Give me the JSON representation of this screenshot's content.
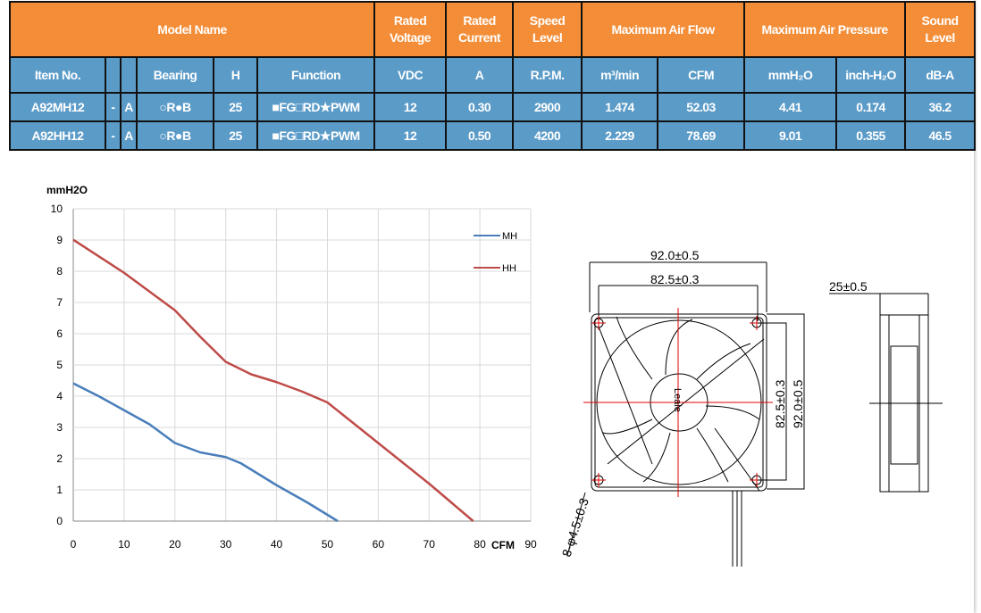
{
  "table": {
    "header1": {
      "model_name": "Model Name",
      "rated_voltage": "Rated Voltage",
      "rated_current": "Rated Current",
      "speed_level": "Speed Level",
      "max_air_flow": "Maximum Air Flow",
      "max_air_pressure": "Maximum Air Pressure",
      "sound_level": "Sound Level"
    },
    "header2": [
      "Item No.",
      "",
      "",
      "Bearing",
      "H",
      "Function",
      "VDC",
      "A",
      "R.P.M.",
      "m³/min",
      "CFM",
      "mmH₂O",
      "inch-H₂O",
      "dB-A"
    ],
    "rows": [
      [
        "A92MH12",
        "-",
        "A",
        "○R●B",
        "25",
        "■FG□RD★PWM",
        "12",
        "0.30",
        "2900",
        "1.474",
        "52.03",
        "4.41",
        "0.174",
        "36.2"
      ],
      [
        "A92HH12",
        "-",
        "A",
        "○R●B",
        "25",
        "■FG□RD★PWM",
        "12",
        "0.50",
        "4200",
        "2.229",
        "78.69",
        "9.01",
        "0.355",
        "46.5"
      ]
    ]
  },
  "chart_data": {
    "type": "line",
    "ylabel": "mmH2O",
    "xlabel": "CFM",
    "xlim": [
      0,
      90
    ],
    "ylim": [
      0,
      10
    ],
    "xticks": [
      "0",
      "10",
      "20",
      "30",
      "40",
      "50",
      "60",
      "70",
      "80",
      "90"
    ],
    "yticks": [
      "0",
      "1",
      "2",
      "3",
      "4",
      "5",
      "6",
      "7",
      "8",
      "9",
      "10"
    ],
    "grid": true,
    "legend": "top-right",
    "series": [
      {
        "name": "MH",
        "color": "#4a7ebb",
        "x": [
          0,
          5,
          10,
          15,
          20,
          25,
          30,
          33,
          40,
          46,
          52.03
        ],
        "y": [
          4.41,
          4.0,
          3.55,
          3.1,
          2.5,
          2.2,
          2.05,
          1.85,
          1.15,
          0.6,
          0
        ]
      },
      {
        "name": "HH",
        "color": "#be4b48",
        "x": [
          0,
          10,
          20,
          25,
          30,
          35,
          40,
          45,
          50,
          60,
          70,
          78.69
        ],
        "y": [
          9.01,
          7.95,
          6.75,
          5.9,
          5.1,
          4.7,
          4.45,
          4.15,
          3.8,
          2.5,
          1.2,
          0
        ]
      }
    ]
  },
  "drawing": {
    "width_dim": "92.0±0.5",
    "hole_dim": "82.5±0.3",
    "thickness_dim": "25±0.5",
    "hole_v_dim": "82.5±0.3",
    "width_v_dim": "92.0±0.5",
    "hole_diameter": "8-φ4.5±0.3",
    "hub_label": "Leale"
  }
}
